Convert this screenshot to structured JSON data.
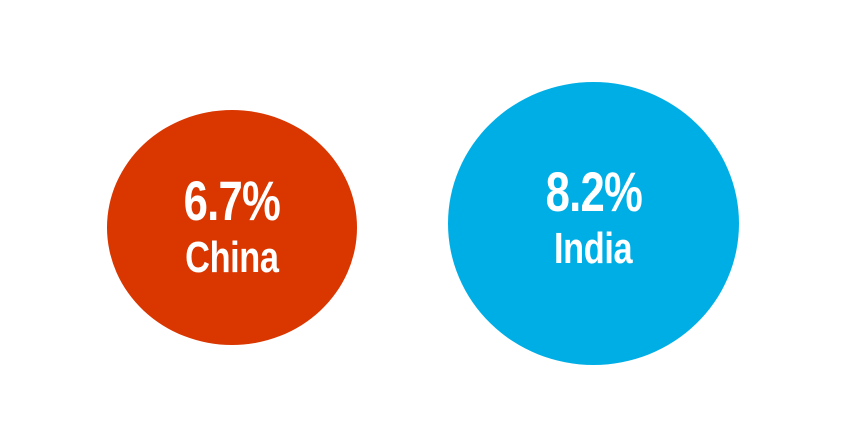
{
  "chart_data": {
    "type": "bubble",
    "title": "",
    "categories": [
      "China",
      "India"
    ],
    "values": [
      6.7,
      8.2
    ],
    "unit": "%",
    "labels": [
      "6.7%",
      "8.2%"
    ],
    "colors": [
      "#d93600",
      "#00aee6"
    ],
    "legend": "none",
    "grid": false
  }
}
